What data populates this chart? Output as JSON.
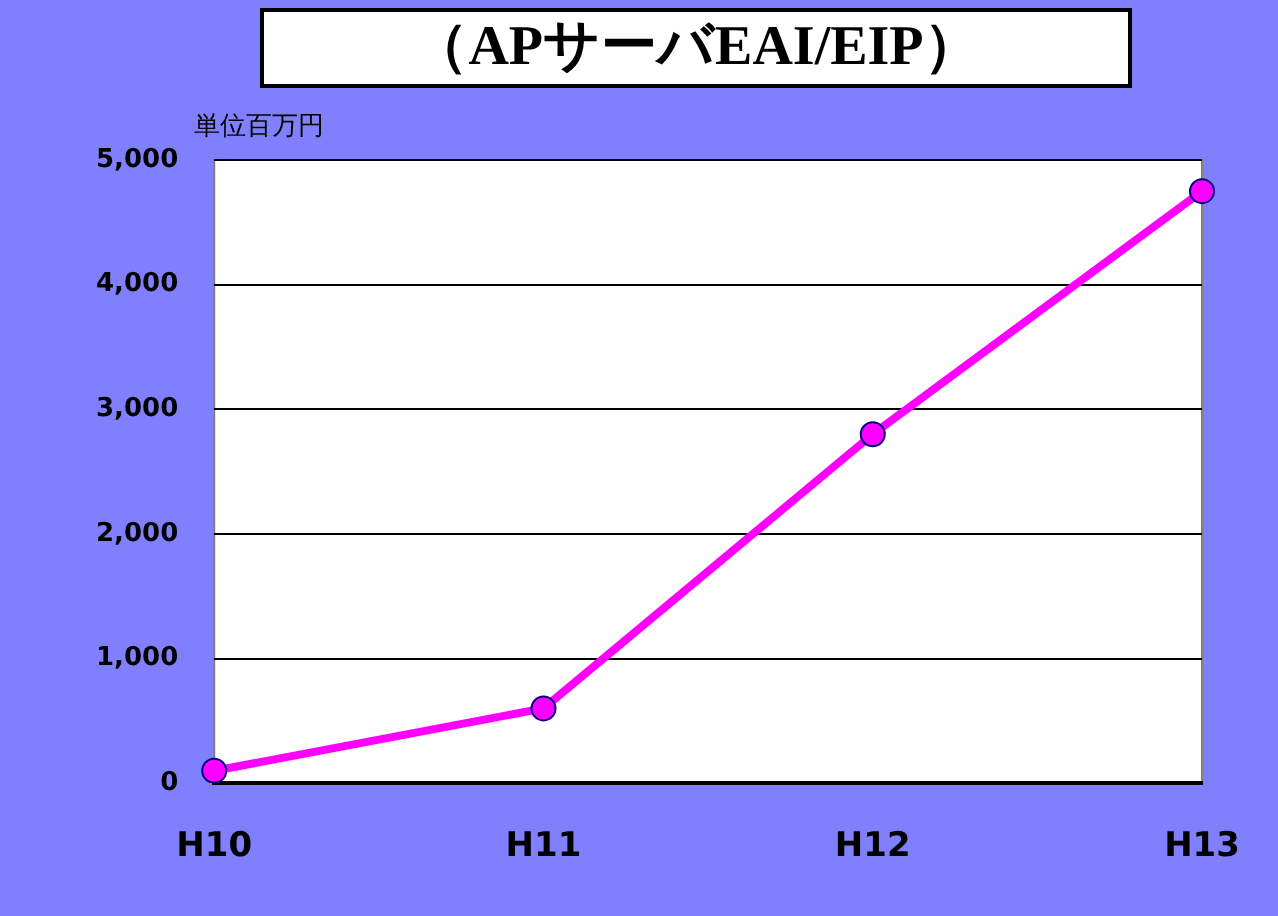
{
  "chart_data": {
    "type": "line",
    "title": "（APサーバEAI/EIP）",
    "ylabel": "単位百万円",
    "categories": [
      "H10",
      "H11",
      "H12",
      "H13"
    ],
    "series": [
      {
        "color": "#ff00ff",
        "values": [
          100,
          600,
          2800,
          4750
        ]
      }
    ],
    "ylim": [
      0,
      5000
    ],
    "yticks": [
      {
        "value": 0,
        "label": "0"
      },
      {
        "value": 1000,
        "label": "1,000"
      },
      {
        "value": 2000,
        "label": "2,000"
      },
      {
        "value": 3000,
        "label": "3,000"
      },
      {
        "value": 4000,
        "label": "4,000"
      },
      {
        "value": 5000,
        "label": "5,000"
      }
    ],
    "grid": "y",
    "legend": false,
    "marker": "circle",
    "line_style": "solid"
  }
}
